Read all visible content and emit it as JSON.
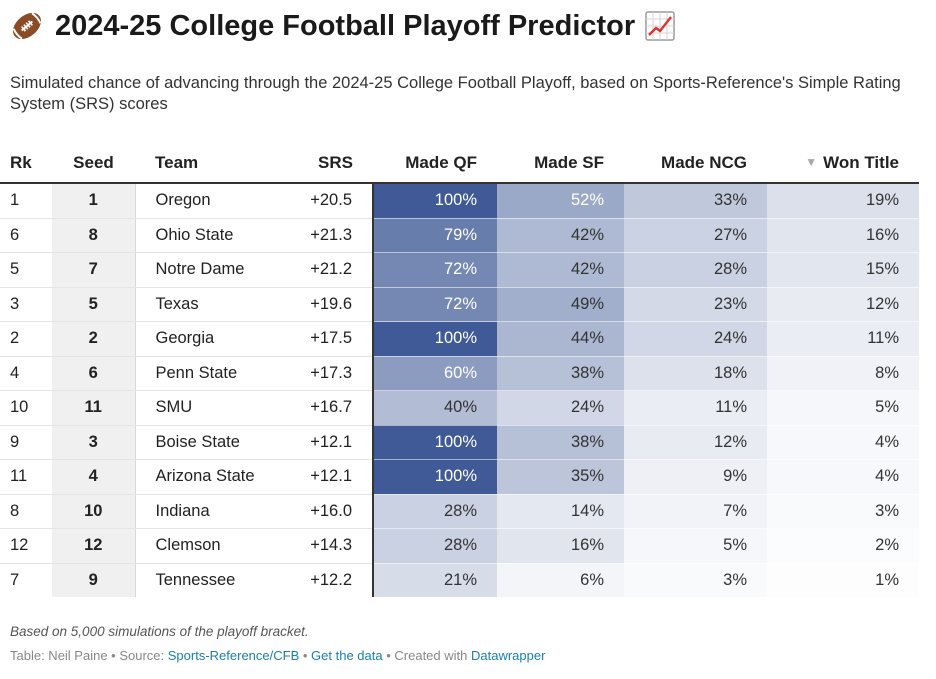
{
  "header": {
    "title": "2024-25 College Football Playoff Predictor",
    "subtitle": "Simulated chance of advancing through the 2024-25 College Football Playoff, based on Sports-Reference's Simple Rating System (SRS) scores",
    "title_icons": [
      "american-football-emoji",
      "chart-increasing-emoji"
    ]
  },
  "chart_data": {
    "type": "table",
    "columns": [
      "Rk",
      "Seed",
      "Team",
      "SRS",
      "Made QF",
      "Made SF",
      "Made NCG",
      "Won Title"
    ],
    "sorted_by": "Won Title",
    "sort_direction": "descending",
    "heatmap_color": "#3f5a96",
    "rows": [
      {
        "rk": "1",
        "seed": "1",
        "team": "Oregon",
        "srs": "+20.5",
        "qf": 100,
        "sf": 52,
        "ncg": 33,
        "title": 19
      },
      {
        "rk": "6",
        "seed": "8",
        "team": "Ohio State",
        "srs": "+21.3",
        "qf": 79,
        "sf": 42,
        "ncg": 27,
        "title": 16
      },
      {
        "rk": "5",
        "seed": "7",
        "team": "Notre Dame",
        "srs": "+21.2",
        "qf": 72,
        "sf": 42,
        "ncg": 28,
        "title": 15
      },
      {
        "rk": "3",
        "seed": "5",
        "team": "Texas",
        "srs": "+19.6",
        "qf": 72,
        "sf": 49,
        "ncg": 23,
        "title": 12
      },
      {
        "rk": "2",
        "seed": "2",
        "team": "Georgia",
        "srs": "+17.5",
        "qf": 100,
        "sf": 44,
        "ncg": 24,
        "title": 11
      },
      {
        "rk": "4",
        "seed": "6",
        "team": "Penn State",
        "srs": "+17.3",
        "qf": 60,
        "sf": 38,
        "ncg": 18,
        "title": 8
      },
      {
        "rk": "10",
        "seed": "11",
        "team": "SMU",
        "srs": "+16.7",
        "qf": 40,
        "sf": 24,
        "ncg": 11,
        "title": 5
      },
      {
        "rk": "9",
        "seed": "3",
        "team": "Boise State",
        "srs": "+12.1",
        "qf": 100,
        "sf": 38,
        "ncg": 12,
        "title": 4
      },
      {
        "rk": "11",
        "seed": "4",
        "team": "Arizona State",
        "srs": "+12.1",
        "qf": 100,
        "sf": 35,
        "ncg": 9,
        "title": 4
      },
      {
        "rk": "8",
        "seed": "10",
        "team": "Indiana",
        "srs": "+16.0",
        "qf": 28,
        "sf": 14,
        "ncg": 7,
        "title": 3
      },
      {
        "rk": "12",
        "seed": "12",
        "team": "Clemson",
        "srs": "+14.3",
        "qf": 28,
        "sf": 16,
        "ncg": 5,
        "title": 2
      },
      {
        "rk": "7",
        "seed": "9",
        "team": "Tennessee",
        "srs": "+12.2",
        "qf": 21,
        "sf": 6,
        "ncg": 3,
        "title": 1
      }
    ]
  },
  "footer": {
    "notes": "Based on 5,000 simulations of the playoff bracket.",
    "table_by": "Table: Neil Paine",
    "separator": " • ",
    "source_label": "Source: ",
    "source_link": "Sports-Reference/CFB",
    "get_data": "Get the data",
    "created_with": "Created with ",
    "datawrapper": "Datawrapper"
  }
}
